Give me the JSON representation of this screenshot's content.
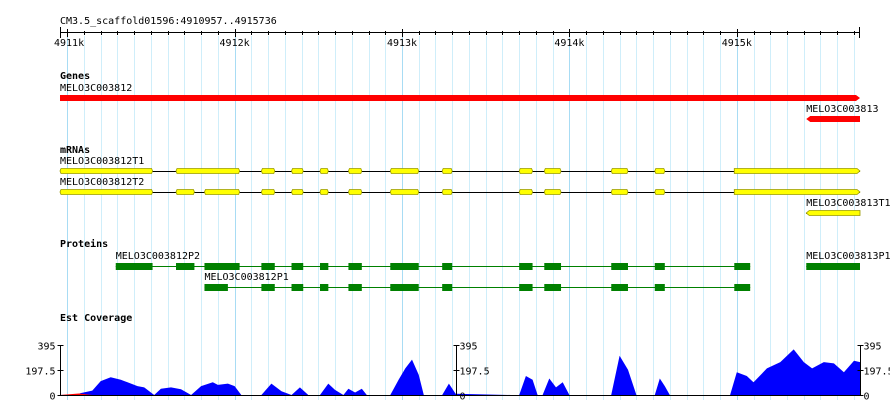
{
  "ruler": {
    "region": "CM3.5_scaffold01596:4910957..4915736",
    "start": 4910957,
    "end": 4915736,
    "ticks": [
      "4911k",
      "4912k",
      "4913k",
      "4914k",
      "4915k"
    ],
    "tick_values": [
      4911000,
      4912000,
      4913000,
      4914000,
      4915000
    ]
  },
  "colors": {
    "grid": "#cfeefa",
    "gene": "#ff0000",
    "mrna_fill": "#ffff00",
    "mrna_stroke": "#999900",
    "protein": "#008000",
    "coverage": "#0000ff",
    "coverage_low": "#ff0000"
  },
  "tracks": {
    "genes": {
      "title": "Genes",
      "items": [
        {
          "name": "MELO3C003812",
          "start": 4910957,
          "end": 4915736,
          "strand": "+"
        },
        {
          "name": "MELO3C003813",
          "start": 4915415,
          "end": 4915736,
          "strand": "-"
        }
      ]
    },
    "mrnas": {
      "title": "mRNAs",
      "items": [
        {
          "name": "MELO3C003812T1",
          "strand": "+",
          "start": 4910957,
          "end": 4915736,
          "exons": [
            [
              4910957,
              4911510
            ],
            [
              4911650,
              4912030
            ],
            [
              4912160,
              4912240
            ],
            [
              4912340,
              4912410
            ],
            [
              4912510,
              4912560
            ],
            [
              4912680,
              4912760
            ],
            [
              4912930,
              4913100
            ],
            [
              4913240,
              4913300
            ],
            [
              4913700,
              4913780
            ],
            [
              4913850,
              4913950
            ],
            [
              4914250,
              4914350
            ],
            [
              4914510,
              4914570
            ],
            [
              4914985,
              4915736
            ]
          ]
        },
        {
          "name": "MELO3C003812T2",
          "strand": "+",
          "start": 4910957,
          "end": 4915736,
          "exons": [
            [
              4910957,
              4911510
            ],
            [
              4911650,
              4911760
            ],
            [
              4911820,
              4912030
            ],
            [
              4912160,
              4912240
            ],
            [
              4912340,
              4912410
            ],
            [
              4912510,
              4912560
            ],
            [
              4912680,
              4912760
            ],
            [
              4912930,
              4913100
            ],
            [
              4913240,
              4913300
            ],
            [
              4913700,
              4913780
            ],
            [
              4913850,
              4913950
            ],
            [
              4914250,
              4914350
            ],
            [
              4914510,
              4914570
            ],
            [
              4914985,
              4915736
            ]
          ]
        },
        {
          "name": "MELO3C003813T1",
          "strand": "-",
          "start": 4915415,
          "end": 4915736,
          "exons": [
            [
              4915415,
              4915736
            ]
          ]
        }
      ]
    },
    "proteins": {
      "title": "Proteins",
      "items": [
        {
          "name": "MELO3C003812P2",
          "start": 4911290,
          "end": 4915080,
          "blocks": [
            [
              4911290,
              4911510
            ],
            [
              4911650,
              4911760
            ],
            [
              4911820,
              4912030
            ],
            [
              4912160,
              4912240
            ],
            [
              4912340,
              4912410
            ],
            [
              4912510,
              4912560
            ],
            [
              4912680,
              4912760
            ],
            [
              4912930,
              4913100
            ],
            [
              4913240,
              4913300
            ],
            [
              4913700,
              4913780
            ],
            [
              4913850,
              4913950
            ],
            [
              4914250,
              4914350
            ],
            [
              4914510,
              4914570
            ],
            [
              4914985,
              4915080
            ]
          ]
        },
        {
          "name": "MELO3C003812P1",
          "start": 4911820,
          "end": 4915080,
          "blocks": [
            [
              4911820,
              4911960
            ],
            [
              4912160,
              4912240
            ],
            [
              4912340,
              4912410
            ],
            [
              4912510,
              4912560
            ],
            [
              4912680,
              4912760
            ],
            [
              4912930,
              4913100
            ],
            [
              4913240,
              4913300
            ],
            [
              4913700,
              4913780
            ],
            [
              4913850,
              4913950
            ],
            [
              4914250,
              4914350
            ],
            [
              4914510,
              4914570
            ],
            [
              4914985,
              4915080
            ]
          ]
        },
        {
          "name": "MELO3C003813P1",
          "start": 4915415,
          "end": 4915736,
          "blocks": [
            [
              4915415,
              4915736
            ]
          ]
        }
      ]
    },
    "coverage": {
      "title": "Est Coverage",
      "max": 395,
      "axis_labels": [
        "395",
        "197.5",
        "0"
      ],
      "axis_values": [
        395,
        197.5,
        0
      ],
      "axis_positions": [
        4910957,
        4913320,
        4915736
      ]
    }
  },
  "chart_data": {
    "type": "area",
    "title": "Est Coverage",
    "ylim": [
      0,
      395
    ],
    "x": [
      4910957,
      4911060,
      4911080,
      4911150,
      4911200,
      4911260,
      4911320,
      4911360,
      4911420,
      4911460,
      4911520,
      4911560,
      4911620,
      4911680,
      4911740,
      4911800,
      4911870,
      4911900,
      4911960,
      4912000,
      4912040,
      4912160,
      4912220,
      4912280,
      4912340,
      4912390,
      4912440,
      4912510,
      4912560,
      4912600,
      4912650,
      4912680,
      4912720,
      4912760,
      4912790,
      4912930,
      4912980,
      4913020,
      4913060,
      4913100,
      4913130,
      4913240,
      4913280,
      4913320,
      4913650,
      4913700,
      4913740,
      4913780,
      4913810,
      4913840,
      4913880,
      4913920,
      4913960,
      4914000,
      4914250,
      4914300,
      4914350,
      4914400,
      4914510,
      4914540,
      4914570,
      4914600,
      4914960,
      4915000,
      4915060,
      4915100,
      4915180,
      4915260,
      4915340,
      4915400,
      4915450,
      4915520,
      4915580,
      4915640,
      4915700,
      4915736
    ],
    "series": [
      {
        "values": [
          0,
          5,
          15,
          35,
          110,
          140,
          120,
          100,
          70,
          60,
          0,
          50,
          60,
          45,
          0,
          70,
          100,
          80,
          90,
          70,
          0,
          0,
          90,
          30,
          0,
          60,
          0,
          0,
          90,
          40,
          0,
          50,
          20,
          50,
          0,
          0,
          120,
          210,
          280,
          160,
          0,
          0,
          90,
          10,
          0,
          0,
          150,
          120,
          0,
          0,
          130,
          60,
          100,
          0,
          0,
          310,
          200,
          0,
          0,
          130,
          70,
          0,
          0,
          180,
          150,
          100,
          210,
          260,
          360,
          260,
          210,
          260,
          250,
          180,
          270,
          260
        ]
      }
    ]
  }
}
